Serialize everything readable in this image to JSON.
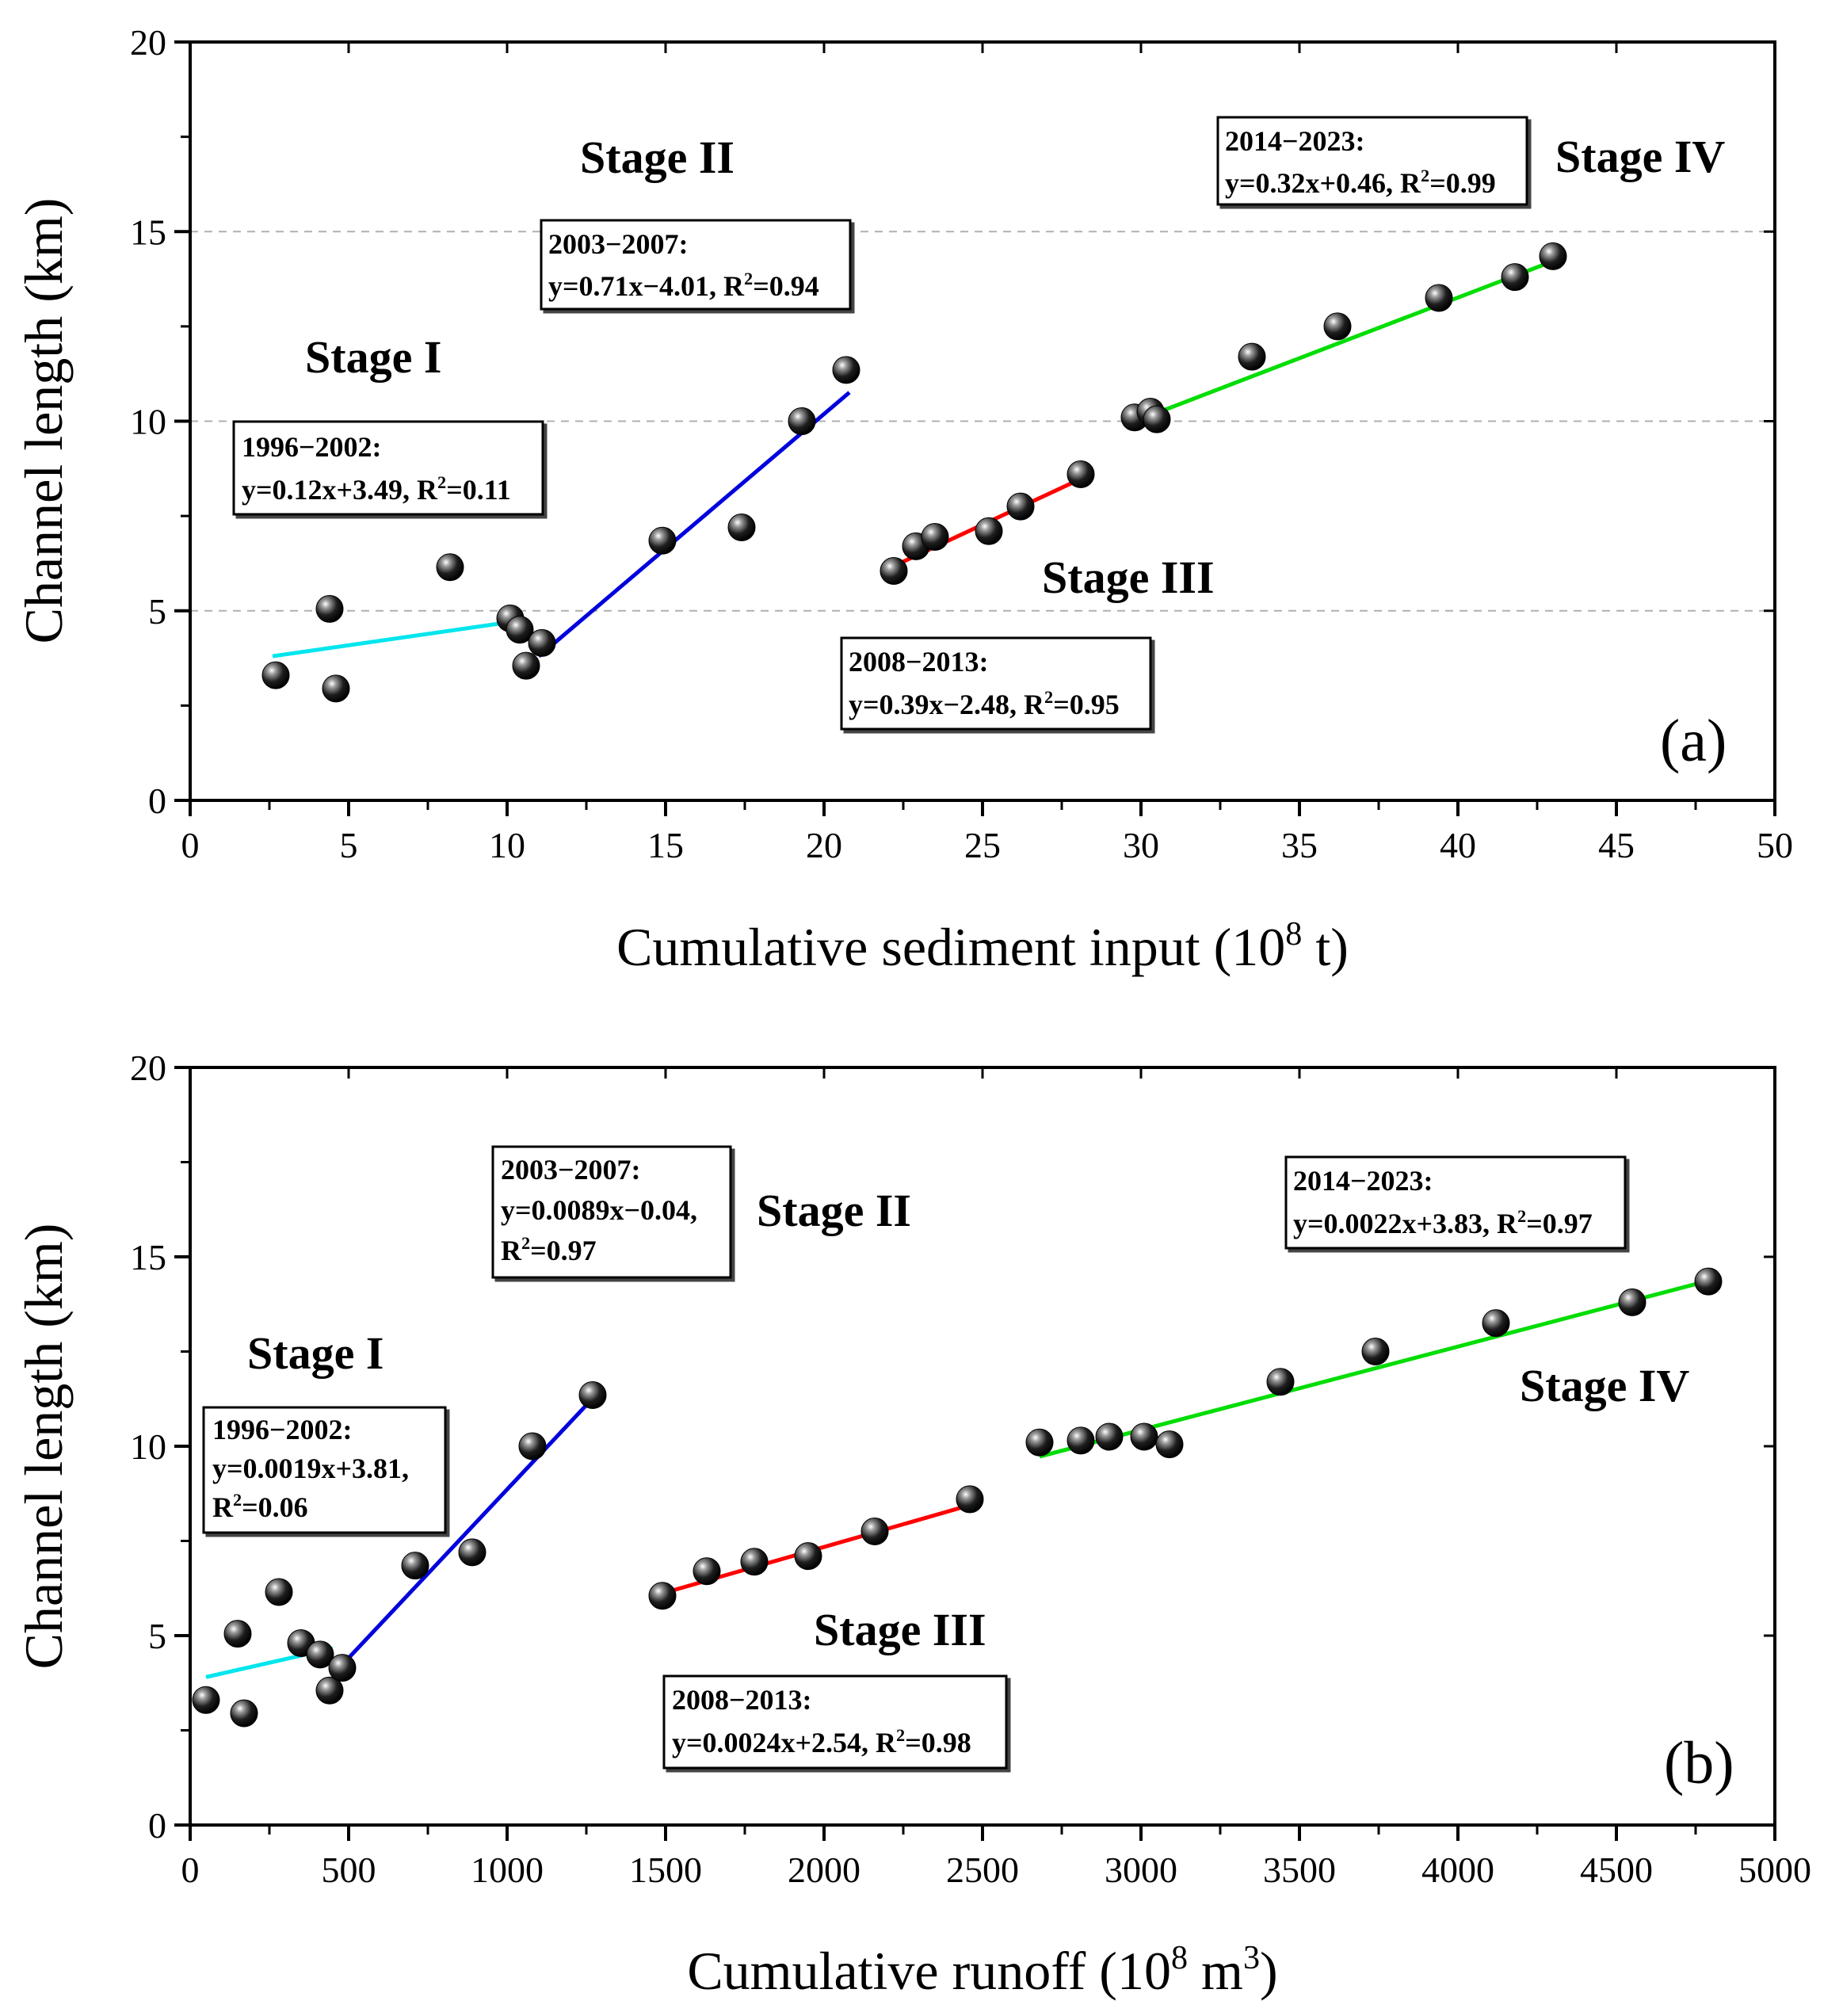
{
  "chart_data": [
    {
      "type": "scatter",
      "panel": "(a)",
      "xlabel_main": "Cumulative sediment input (10",
      "xlabel_exp": "8",
      "xlabel_tail": " t)",
      "ylabel": "Channel length (km)",
      "xlim": [
        0,
        50
      ],
      "ylim": [
        0,
        20
      ],
      "xticks": [
        0,
        5,
        10,
        15,
        20,
        25,
        30,
        35,
        40,
        45,
        50
      ],
      "yticks": [
        0,
        5,
        10,
        15,
        20
      ],
      "grid": "dashed",
      "points": [
        {
          "x": 2.7,
          "y": 3.3
        },
        {
          "x": 4.4,
          "y": 5.05
        },
        {
          "x": 4.6,
          "y": 2.95
        },
        {
          "x": 8.2,
          "y": 6.15
        },
        {
          "x": 10.1,
          "y": 4.8
        },
        {
          "x": 10.4,
          "y": 4.5
        },
        {
          "x": 10.6,
          "y": 3.55
        },
        {
          "x": 11.1,
          "y": 4.15
        },
        {
          "x": 14.9,
          "y": 6.85
        },
        {
          "x": 17.4,
          "y": 7.2
        },
        {
          "x": 19.3,
          "y": 10.0
        },
        {
          "x": 20.7,
          "y": 11.35
        },
        {
          "x": 22.2,
          "y": 6.05
        },
        {
          "x": 22.9,
          "y": 6.7
        },
        {
          "x": 23.5,
          "y": 6.95
        },
        {
          "x": 25.2,
          "y": 7.1
        },
        {
          "x": 26.2,
          "y": 7.75
        },
        {
          "x": 28.1,
          "y": 8.6
        },
        {
          "x": 29.8,
          "y": 10.1
        },
        {
          "x": 30.3,
          "y": 10.25
        },
        {
          "x": 30.5,
          "y": 10.05
        },
        {
          "x": 33.5,
          "y": 11.7
        },
        {
          "x": 36.2,
          "y": 12.5
        },
        {
          "x": 39.4,
          "y": 13.25
        },
        {
          "x": 41.8,
          "y": 13.8
        },
        {
          "x": 43.0,
          "y": 14.35
        }
      ],
      "fits": [
        {
          "stage": "Stage I",
          "color": "#00e5ee",
          "x": [
            2.6,
            10.6
          ],
          "slope": 0.12,
          "intercept": 3.49
        },
        {
          "stage": "Stage II",
          "color": "#0000dd",
          "x": [
            11.0,
            20.8
          ],
          "slope": 0.71,
          "intercept": -4.01
        },
        {
          "stage": "Stage III",
          "color": "#ff0000",
          "x": [
            22.2,
            28.3
          ],
          "slope": 0.39,
          "intercept": -2.48
        },
        {
          "stage": "Stage IV",
          "color": "#00dd00",
          "x": [
            29.8,
            43.2
          ],
          "slope": 0.32,
          "intercept": 0.46
        }
      ],
      "stage_labels": [
        "Stage I",
        "Stage II",
        "Stage III",
        "Stage IV"
      ],
      "equations": [
        {
          "period": "1996−2002:",
          "eq": "y=0.12x+3.49, R",
          "r2exp": "2",
          "r2val": "=0.11"
        },
        {
          "period": "2003−2007:",
          "eq": "y=0.71x−4.01, R",
          "r2exp": "2",
          "r2val": "=0.94"
        },
        {
          "period": "2008−2013:",
          "eq": "y=0.39x−2.48, R",
          "r2exp": "2",
          "r2val": "=0.95"
        },
        {
          "period": "2014−2023:",
          "eq": "y=0.32x+0.46, R",
          "r2exp": "2",
          "r2val": "=0.99"
        }
      ]
    },
    {
      "type": "scatter",
      "panel": "(b)",
      "xlabel_main": "Cumulative runoff (10",
      "xlabel_exp": "8",
      "xlabel_tail": " m",
      "xlabel_exp2": "3",
      "xlabel_end": ")",
      "ylabel": "Channel length (km)",
      "xlim": [
        0,
        5000
      ],
      "ylim": [
        0,
        20
      ],
      "xticks": [
        0,
        500,
        1000,
        1500,
        2000,
        2500,
        3000,
        3500,
        4000,
        4500,
        5000
      ],
      "yticks": [
        0,
        5,
        10,
        15,
        20
      ],
      "grid": "none",
      "points": [
        {
          "x": 50,
          "y": 3.3
        },
        {
          "x": 150,
          "y": 5.05
        },
        {
          "x": 170,
          "y": 2.95
        },
        {
          "x": 280,
          "y": 6.15
        },
        {
          "x": 350,
          "y": 4.8
        },
        {
          "x": 410,
          "y": 4.5
        },
        {
          "x": 440,
          "y": 3.55
        },
        {
          "x": 480,
          "y": 4.15
        },
        {
          "x": 710,
          "y": 6.85
        },
        {
          "x": 890,
          "y": 7.2
        },
        {
          "x": 1080,
          "y": 10.0
        },
        {
          "x": 1270,
          "y": 11.35
        },
        {
          "x": 1490,
          "y": 6.05
        },
        {
          "x": 1630,
          "y": 6.7
        },
        {
          "x": 1780,
          "y": 6.95
        },
        {
          "x": 1950,
          "y": 7.1
        },
        {
          "x": 2160,
          "y": 7.75
        },
        {
          "x": 2460,
          "y": 8.6
        },
        {
          "x": 2680,
          "y": 10.1
        },
        {
          "x": 2810,
          "y": 10.15
        },
        {
          "x": 2900,
          "y": 10.25
        },
        {
          "x": 3010,
          "y": 10.25
        },
        {
          "x": 3090,
          "y": 10.05
        },
        {
          "x": 3440,
          "y": 11.7
        },
        {
          "x": 3740,
          "y": 12.5
        },
        {
          "x": 4120,
          "y": 13.25
        },
        {
          "x": 4550,
          "y": 13.8
        },
        {
          "x": 4790,
          "y": 14.35
        }
      ],
      "fits": [
        {
          "stage": "Stage I",
          "color": "#00e5ee",
          "x": [
            50,
            450
          ],
          "slope": 0.0019,
          "intercept": 3.81
        },
        {
          "stage": "Stage II",
          "color": "#0000dd",
          "x": [
            470,
            1280
          ],
          "slope": 0.0089,
          "intercept": -0.04
        },
        {
          "stage": "Stage III",
          "color": "#ff0000",
          "x": [
            1500,
            2480
          ],
          "slope": 0.0024,
          "intercept": 2.54
        },
        {
          "stage": "Stage IV",
          "color": "#00dd00",
          "x": [
            2680,
            4800
          ],
          "slope": 0.0022,
          "intercept": 3.83
        }
      ],
      "stage_labels": [
        "Stage I",
        "Stage II",
        "Stage III",
        "Stage IV"
      ],
      "equations": [
        {
          "period": "1996−2002:",
          "eq": "y=0.0019x+3.81,",
          "r2pre": "R",
          "r2exp": "2",
          "r2val": "=0.06"
        },
        {
          "period": "2003−2007:",
          "eq": "y=0.0089x−0.04,",
          "r2pre": "R",
          "r2exp": "2",
          "r2val": "=0.97"
        },
        {
          "period": "2008−2013:",
          "eq": "y=0.0024x+2.54, R",
          "r2exp": "2",
          "r2val": "=0.98"
        },
        {
          "period": "2014−2023:",
          "eq": "y=0.0022x+3.83, R",
          "r2exp": "2",
          "r2val": "=0.97"
        }
      ]
    }
  ]
}
